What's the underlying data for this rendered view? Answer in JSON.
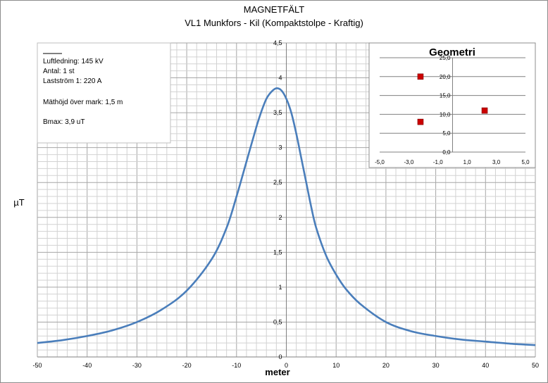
{
  "chart_data": [
    {
      "type": "line",
      "title": "MAGNETFÄLT",
      "subtitle": "VL1 Munkfors - Kil (Kompaktstolpe - Kraftig)",
      "xlabel": "meter",
      "ylabel": "µT",
      "xlim": [
        -50,
        50
      ],
      "ylim": [
        0,
        4.5
      ],
      "x_ticks": [
        "-50",
        "-40",
        "-30",
        "-20",
        "-10",
        "0",
        "10",
        "20",
        "30",
        "40",
        "50"
      ],
      "y_ticks": [
        "0",
        "0,5",
        "1",
        "1,5",
        "2",
        "2,5",
        "3",
        "3,5",
        "4",
        "4,5"
      ],
      "grid": true,
      "series": [
        {
          "color": "#4A7EBB",
          "x": [
            -50,
            -45,
            -40,
            -35,
            -30,
            -25,
            -20,
            -15,
            -12,
            -10,
            -8,
            -6,
            -5,
            -4,
            -3,
            -2,
            -1,
            0,
            1,
            2,
            3,
            4,
            5,
            6,
            8,
            10,
            12,
            15,
            20,
            25,
            30,
            35,
            40,
            45,
            50
          ],
          "y": [
            0.2,
            0.24,
            0.3,
            0.38,
            0.5,
            0.68,
            0.95,
            1.4,
            1.85,
            2.3,
            2.8,
            3.3,
            3.52,
            3.7,
            3.8,
            3.85,
            3.82,
            3.7,
            3.5,
            3.2,
            2.85,
            2.5,
            2.15,
            1.85,
            1.45,
            1.18,
            0.97,
            0.75,
            0.5,
            0.37,
            0.3,
            0.25,
            0.22,
            0.19,
            0.17
          ]
        }
      ]
    },
    {
      "type": "scatter",
      "title": "Geometri",
      "xlim": [
        -5,
        5
      ],
      "ylim": [
        0,
        25
      ],
      "x_ticks": [
        "-5,0",
        "-3,0",
        "-1,0",
        "1,0",
        "3,0",
        "5,0"
      ],
      "y_ticks": [
        "0,0",
        "5,0",
        "10,0",
        "15,0",
        "20,0",
        "25,0"
      ],
      "color": "#CC0000",
      "points": [
        {
          "x": -2.2,
          "y": 20.0
        },
        {
          "x": -2.2,
          "y": 8.0
        },
        {
          "x": 2.2,
          "y": 11.0
        }
      ]
    }
  ],
  "info_box": {
    "lines": [
      "Luftledning: 145 kV",
      "Antal: 1 st",
      "Lastström 1: 220 A",
      "",
      "Mäthöjd över mark: 1,5 m",
      "",
      "Bmax: 3,9 uT"
    ]
  }
}
